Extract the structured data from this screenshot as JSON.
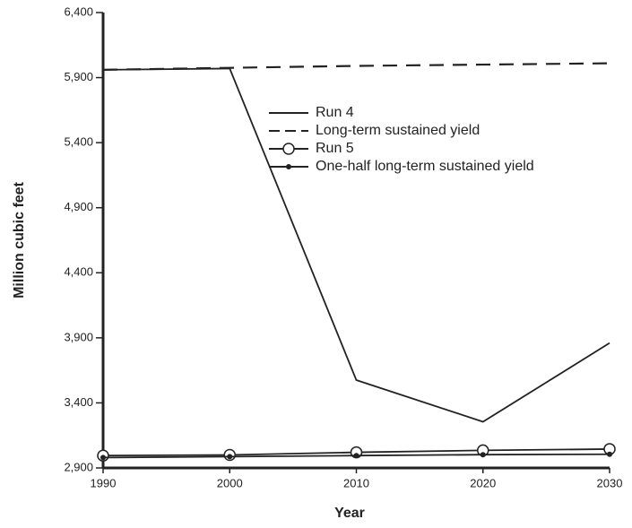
{
  "chart_data": {
    "type": "line",
    "x_label": "Year",
    "y_label": "Million cubic feet",
    "x": [
      1990,
      2000,
      2010,
      2020,
      2030
    ],
    "xlim": [
      1990,
      2030
    ],
    "xticks": [
      1990,
      2000,
      2010,
      2020,
      2030
    ],
    "ylim": [
      2900,
      6400
    ],
    "yticks": [
      {
        "value": 2900,
        "label": "2,900"
      },
      {
        "value": 3400,
        "label": "3,400"
      },
      {
        "value": 3900,
        "label": "3,900"
      },
      {
        "value": 4400,
        "label": "4,400"
      },
      {
        "value": 4900,
        "label": "4,900"
      },
      {
        "value": 5400,
        "label": "5,400"
      },
      {
        "value": 5900,
        "label": "5,900"
      },
      {
        "value": 6400,
        "label": "6,400"
      }
    ],
    "series": [
      {
        "name": "Run 4",
        "color": "#222222",
        "dash": false,
        "marker": "none",
        "values": [
          5960,
          5970,
          3575,
          3255,
          3860
        ]
      },
      {
        "name": "Long-term sustained yield",
        "color": "#222222",
        "dash": true,
        "marker": "none",
        "values": [
          5960,
          5975,
          5990,
          6000,
          6010
        ]
      },
      {
        "name": "Run 5",
        "color": "#222222",
        "dash": false,
        "marker": "circle",
        "values": [
          2995,
          3000,
          3020,
          3035,
          3045
        ]
      },
      {
        "name": "One-half long-term sustained yield",
        "color": "#222222",
        "dash": false,
        "marker": "dot",
        "values": [
          2980,
          2987,
          2995,
          3002,
          3005
        ]
      }
    ]
  }
}
